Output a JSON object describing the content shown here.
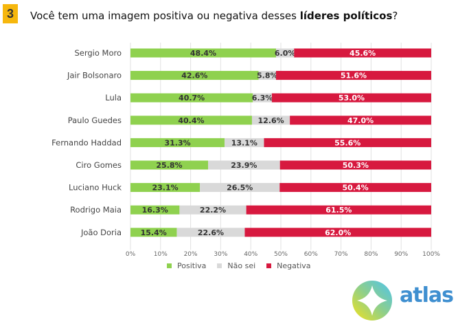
{
  "badge": "3",
  "title": {
    "prefix": "Você tem uma imagem positiva ou negativa desses ",
    "bold": "líderes políticos",
    "suffix": "?"
  },
  "logo_text": "atlas",
  "chart_data": {
    "type": "bar",
    "orientation": "horizontal",
    "stacked": true,
    "categories": [
      "Sergio Moro",
      "Jair Bolsonaro",
      "Lula",
      "Paulo Guedes",
      "Fernando Haddad",
      "Ciro Gomes",
      "Luciano Huck",
      "Rodrigo Maia",
      "João Doria"
    ],
    "series": [
      {
        "name": "Positiva",
        "color": "#8fd14f",
        "values": [
          48.4,
          42.6,
          40.7,
          40.4,
          31.3,
          25.8,
          23.1,
          16.3,
          15.4
        ]
      },
      {
        "name": "Não sei",
        "color": "#d9d9d9",
        "values": [
          6.0,
          5.8,
          6.3,
          12.6,
          13.1,
          23.9,
          26.5,
          22.2,
          22.6
        ]
      },
      {
        "name": "Negativa",
        "color": "#d7193f",
        "values": [
          45.6,
          51.6,
          53.0,
          47.0,
          55.6,
          50.3,
          50.4,
          61.5,
          62.0
        ]
      }
    ],
    "xlim": [
      0,
      100
    ],
    "xticks": [
      "0%",
      "10%",
      "20%",
      "30%",
      "40%",
      "50%",
      "60%",
      "70%",
      "80%",
      "90%",
      "100%"
    ],
    "grid": true,
    "legend": "bottom"
  }
}
